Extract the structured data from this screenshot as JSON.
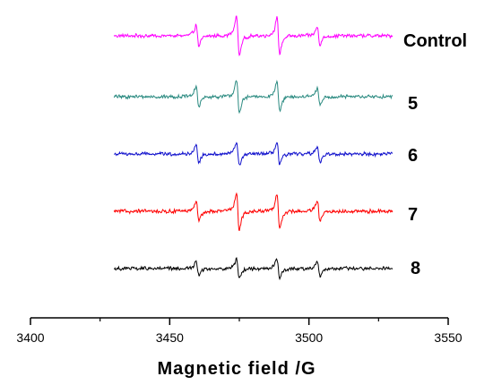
{
  "chart_data": {
    "type": "line",
    "xlabel": "Magnetic field /G",
    "ylabel": "",
    "xlim": [
      3400,
      3550
    ],
    "x_ticks": [
      "3400",
      "3450",
      "3500",
      "3550"
    ],
    "x_range_plotted": [
      3430,
      3530
    ],
    "y_axis_shown": false,
    "grid": false,
    "series": [
      {
        "name": "Control",
        "color": "#ff00ff",
        "peaks": [
          {
            "x": 3460,
            "amp": 0.55
          },
          {
            "x": 3474.5,
            "amp": 1.0
          },
          {
            "x": 3489,
            "amp": 0.9
          },
          {
            "x": 3503.5,
            "amp": 0.45
          }
        ]
      },
      {
        "name": "5",
        "color": "#2a8a80",
        "peaks": [
          {
            "x": 3460,
            "amp": 0.5
          },
          {
            "x": 3474.5,
            "amp": 0.8
          },
          {
            "x": 3489,
            "amp": 0.78
          },
          {
            "x": 3503.5,
            "amp": 0.4
          }
        ]
      },
      {
        "name": "6",
        "color": "#1010cc",
        "peaks": [
          {
            "x": 3460,
            "amp": 0.4
          },
          {
            "x": 3474.5,
            "amp": 0.6
          },
          {
            "x": 3489,
            "amp": 0.55
          },
          {
            "x": 3503.5,
            "amp": 0.4
          }
        ]
      },
      {
        "name": "7",
        "color": "#ff0000",
        "peaks": [
          {
            "x": 3460,
            "amp": 0.5
          },
          {
            "x": 3474.5,
            "amp": 0.95
          },
          {
            "x": 3489,
            "amp": 0.9
          },
          {
            "x": 3503.5,
            "amp": 0.5
          }
        ]
      },
      {
        "name": "8",
        "color": "#000000",
        "peaks": [
          {
            "x": 3460,
            "amp": 0.35
          },
          {
            "x": 3474.5,
            "amp": 0.5
          },
          {
            "x": 3489,
            "amp": 0.5
          },
          {
            "x": 3503.5,
            "amp": 0.35
          }
        ]
      }
    ]
  }
}
